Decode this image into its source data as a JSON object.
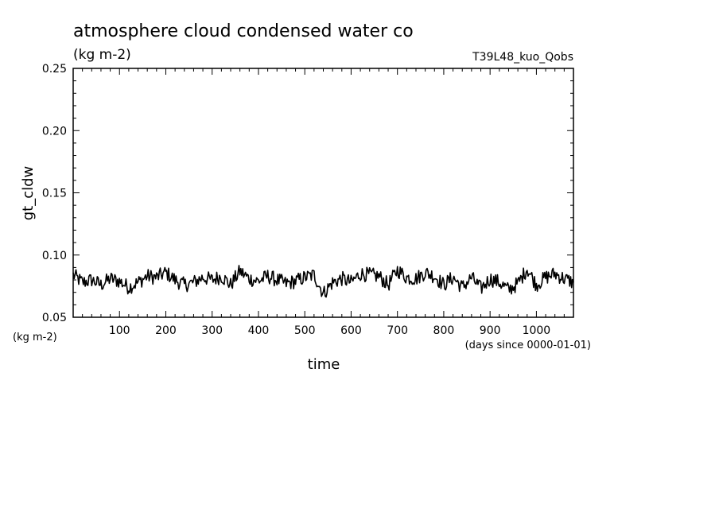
{
  "chart_data": {
    "type": "line",
    "title": "atmosphere cloud condensed water co",
    "units": "(kg m-2)",
    "run_label": "T39L48_kuo_Qobs",
    "ylabel": "gt_cldw",
    "xlabel": "time",
    "x_units": "(days since 0000-01-01)",
    "y_units": "(kg m-2)",
    "xlim": [
      0,
      1080
    ],
    "ylim": [
      0.05,
      0.25
    ],
    "x_ticks": [
      100,
      200,
      300,
      400,
      500,
      600,
      700,
      800,
      900,
      1000
    ],
    "y_ticks": [
      "0.05",
      "0.10",
      "0.15",
      "0.20",
      "0.25"
    ],
    "series": [
      {
        "name": "gt_cldw",
        "x": [
          0,
          20,
          40,
          60,
          80,
          100,
          120,
          140,
          160,
          180,
          200,
          220,
          240,
          260,
          280,
          300,
          320,
          340,
          360,
          380,
          400,
          420,
          440,
          460,
          480,
          500,
          520,
          540,
          560,
          580,
          600,
          620,
          640,
          660,
          680,
          700,
          720,
          740,
          760,
          780,
          800,
          820,
          840,
          860,
          880,
          900,
          920,
          940,
          960,
          980,
          1000,
          1020,
          1040,
          1060,
          1080
        ],
        "values": [
          0.084,
          0.078,
          0.08,
          0.076,
          0.081,
          0.079,
          0.074,
          0.078,
          0.083,
          0.082,
          0.086,
          0.08,
          0.076,
          0.078,
          0.082,
          0.08,
          0.083,
          0.076,
          0.087,
          0.081,
          0.079,
          0.083,
          0.08,
          0.077,
          0.079,
          0.082,
          0.084,
          0.069,
          0.078,
          0.081,
          0.078,
          0.085,
          0.084,
          0.083,
          0.076,
          0.088,
          0.082,
          0.081,
          0.086,
          0.083,
          0.076,
          0.082,
          0.074,
          0.082,
          0.073,
          0.081,
          0.078,
          0.072,
          0.077,
          0.089,
          0.076,
          0.082,
          0.085,
          0.081,
          0.078
        ]
      }
    ]
  }
}
